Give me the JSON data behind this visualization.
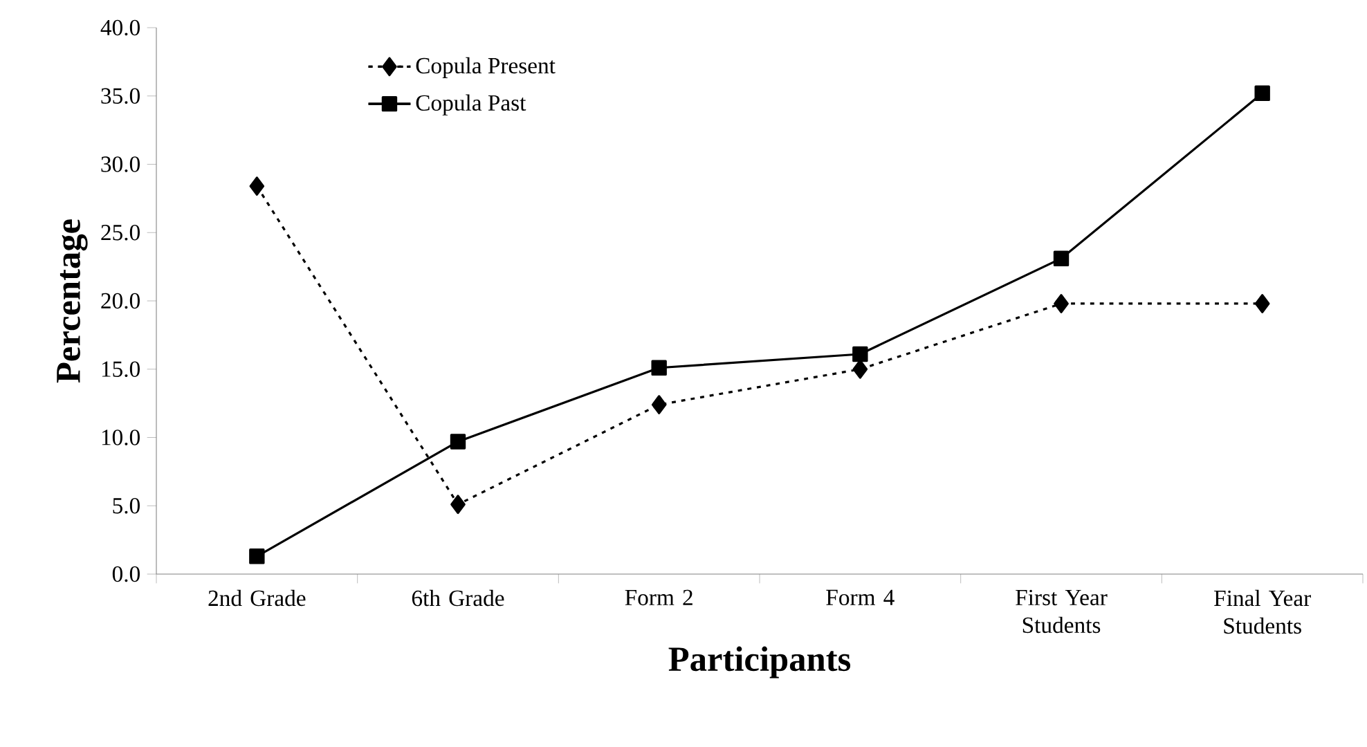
{
  "chart_data": {
    "type": "line",
    "xlabel": "Participants",
    "ylabel": "Percentage",
    "categories": [
      "2nd Grade",
      "6th Grade",
      "Form 2",
      "Form 4",
      "First Year Students",
      "Final Year Students"
    ],
    "series": [
      {
        "name": "Copula Present",
        "color": "#000000",
        "marker": "diamond",
        "line_style": "dotted",
        "values": [
          28.4,
          5.1,
          12.4,
          15.0,
          19.8,
          19.8
        ]
      },
      {
        "name": "Copula Past",
        "color": "#000000",
        "marker": "square",
        "line_style": "solid",
        "values": [
          1.3,
          9.7,
          15.1,
          16.1,
          23.1,
          35.2
        ]
      }
    ],
    "ylim": [
      0,
      40
    ],
    "yticks": [
      {
        "value": 0,
        "label": "0.0"
      },
      {
        "value": 5,
        "label": "5.0"
      },
      {
        "value": 10,
        "label": "10.0"
      },
      {
        "value": 15,
        "label": "15.0"
      },
      {
        "value": 20,
        "label": "20.0"
      },
      {
        "value": 25,
        "label": "25.0"
      },
      {
        "value": 30,
        "label": "30.0"
      },
      {
        "value": 35,
        "label": "35.0"
      },
      {
        "value": 40,
        "label": "40.0"
      }
    ],
    "grid": false,
    "legend": "top left"
  }
}
